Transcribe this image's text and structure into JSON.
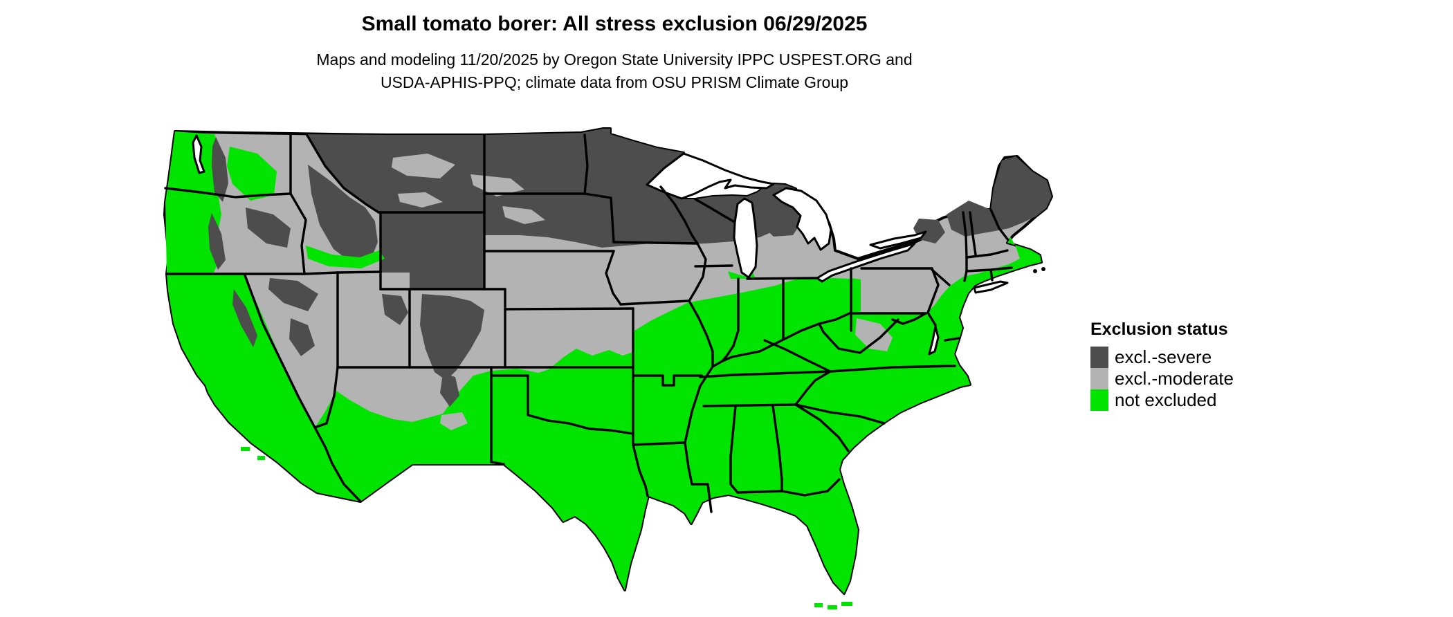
{
  "title": "Small tomato borer: All stress exclusion 06/29/2025",
  "subtitle": {
    "lines": [
      "Maps and modeling 11/20/2025 by Oregon State University IPPC USPEST.ORG and",
      "USDA-APHIS-PPQ; climate data from OSU PRISM Climate Group"
    ]
  },
  "legend": {
    "title": "Exclusion status",
    "items": [
      {
        "label": "excl.-severe",
        "color": "#4d4d4d"
      },
      {
        "label": "excl.-moderate",
        "color": "#b3b3b3"
      },
      {
        "label": "not excluded",
        "color": "#00e400"
      }
    ]
  },
  "map": {
    "kind": "choropleth of continental United States",
    "status_classes": [
      "excl.-severe",
      "excl.-moderate",
      "not excluded"
    ],
    "background_color": "#ffffff",
    "border_color": "#000000",
    "water_color": "#ffffff"
  }
}
